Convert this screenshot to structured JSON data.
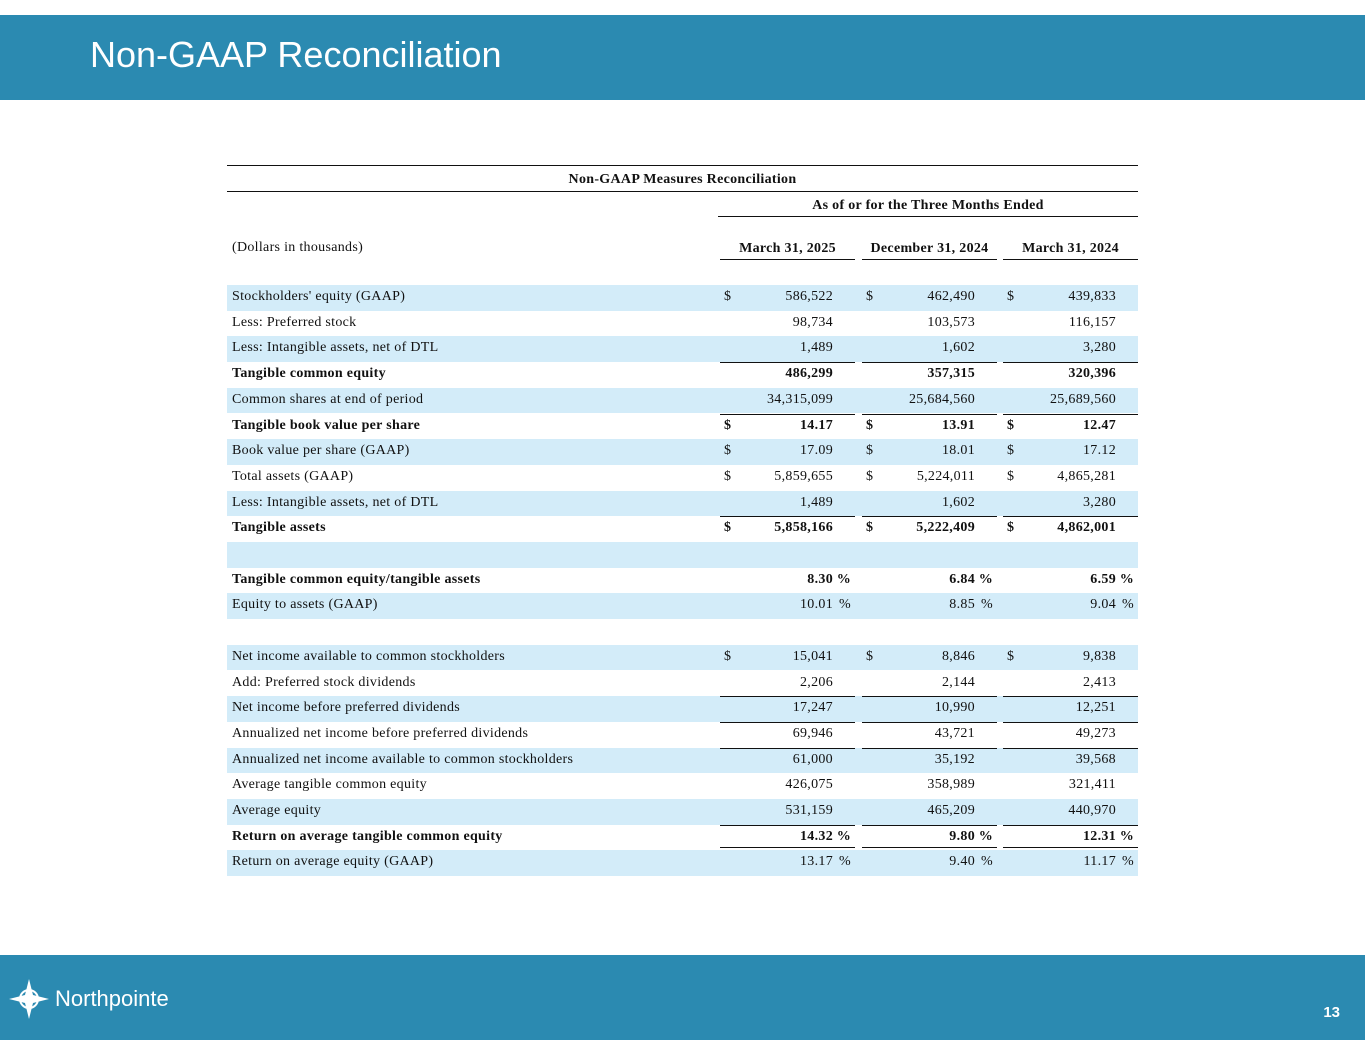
{
  "header": {
    "title": "Non-GAAP Reconciliation"
  },
  "table": {
    "title": "Non-GAAP Measures Reconciliation",
    "group_header": "As of or for the Three Months Ended",
    "unit_note": "(Dollars in thousands)",
    "columns": [
      "March 31, 2025",
      "December 31, 2024",
      "March 31, 2024"
    ],
    "sections": [
      {
        "rows": [
          {
            "label": "Stockholders' equity (GAAP)",
            "cells": [
              {
                "sign": "$",
                "value": "586,522"
              },
              {
                "sign": "$",
                "value": "462,490"
              },
              {
                "sign": "$",
                "value": "439,833"
              }
            ]
          },
          {
            "label": "Less: Preferred stock",
            "cells": [
              {
                "value": "98,734"
              },
              {
                "value": "103,573"
              },
              {
                "value": "116,157"
              }
            ]
          },
          {
            "label": "Less: Intangible assets, net of DTL",
            "cells": [
              {
                "value": "1,489"
              },
              {
                "value": "1,602"
              },
              {
                "value": "3,280"
              }
            ]
          },
          {
            "label": "Tangible common equity",
            "bold": true,
            "rule_above": true,
            "cells": [
              {
                "value": "486,299"
              },
              {
                "value": "357,315"
              },
              {
                "value": "320,396"
              }
            ]
          },
          {
            "label": "Common shares at end of period",
            "cells": [
              {
                "value": "34,315,099"
              },
              {
                "value": "25,684,560"
              },
              {
                "value": "25,689,560"
              }
            ]
          },
          {
            "label": "Tangible book value per share",
            "bold": true,
            "rule_above": true,
            "cells": [
              {
                "sign": "$",
                "value": "14.17"
              },
              {
                "sign": "$",
                "value": "13.91"
              },
              {
                "sign": "$",
                "value": "12.47"
              }
            ]
          },
          {
            "label": "Book value per share (GAAP)",
            "cells": [
              {
                "sign": "$",
                "value": "17.09"
              },
              {
                "sign": "$",
                "value": "18.01"
              },
              {
                "sign": "$",
                "value": "17.12"
              }
            ]
          },
          {
            "label": "Total assets (GAAP)",
            "cells": [
              {
                "sign": "$",
                "value": "5,859,655"
              },
              {
                "sign": "$",
                "value": "5,224,011"
              },
              {
                "sign": "$",
                "value": "4,865,281"
              }
            ]
          },
          {
            "label": "Less: Intangible assets, net of DTL",
            "cells": [
              {
                "value": "1,489"
              },
              {
                "value": "1,602"
              },
              {
                "value": "3,280"
              }
            ]
          },
          {
            "label": "Tangible assets",
            "bold": true,
            "rule_above": true,
            "cells": [
              {
                "sign": "$",
                "value": "5,858,166"
              },
              {
                "sign": "$",
                "value": "5,222,409"
              },
              {
                "sign": "$",
                "value": "4,862,001"
              }
            ]
          }
        ]
      },
      {
        "rows": [
          {
            "label": "Tangible common equity/tangible assets",
            "bold": true,
            "cells": [
              {
                "value": "8.30",
                "unit": "%"
              },
              {
                "value": "6.84",
                "unit": "%"
              },
              {
                "value": "6.59",
                "unit": "%"
              }
            ]
          },
          {
            "label": "Equity to assets (GAAP)",
            "cells": [
              {
                "value": "10.01",
                "unit": "%"
              },
              {
                "value": "8.85",
                "unit": "%"
              },
              {
                "value": "9.04",
                "unit": "%"
              }
            ]
          }
        ]
      },
      {
        "rows": [
          {
            "label": "Net income available to common stockholders",
            "cells": [
              {
                "sign": "$",
                "value": "15,041"
              },
              {
                "sign": "$",
                "value": "8,846"
              },
              {
                "sign": "$",
                "value": "9,838"
              }
            ]
          },
          {
            "label": "Add: Preferred stock dividends",
            "cells": [
              {
                "value": "2,206"
              },
              {
                "value": "2,144"
              },
              {
                "value": "2,413"
              }
            ]
          },
          {
            "label": "Net income before preferred dividends",
            "rule_above": true,
            "cells": [
              {
                "value": "17,247"
              },
              {
                "value": "10,990"
              },
              {
                "value": "12,251"
              }
            ]
          },
          {
            "label": "Annualized net income before preferred dividends",
            "rule_above": true,
            "cells": [
              {
                "value": "69,946"
              },
              {
                "value": "43,721"
              },
              {
                "value": "49,273"
              }
            ]
          },
          {
            "label": "Annualized net income available to common stockholders",
            "rule_above": true,
            "cells": [
              {
                "value": "61,000"
              },
              {
                "value": "35,192"
              },
              {
                "value": "39,568"
              }
            ]
          },
          {
            "label": "Average tangible common equity",
            "cells": [
              {
                "value": "426,075"
              },
              {
                "value": "358,989"
              },
              {
                "value": "321,411"
              }
            ]
          },
          {
            "label": "Average equity",
            "cells": [
              {
                "value": "531,159"
              },
              {
                "value": "465,209"
              },
              {
                "value": "440,970"
              }
            ]
          },
          {
            "label": "Return on average tangible common equity",
            "bold": true,
            "rule_above": true,
            "double_below": true,
            "cells": [
              {
                "value": "14.32",
                "unit": "%"
              },
              {
                "value": "9.80",
                "unit": "%"
              },
              {
                "value": "12.31",
                "unit": "%"
              }
            ]
          },
          {
            "label": "Return on average equity (GAAP)",
            "cells": [
              {
                "value": "13.17",
                "unit": "%"
              },
              {
                "value": "9.40",
                "unit": "%"
              },
              {
                "value": "11.17",
                "unit": "%"
              }
            ]
          }
        ]
      }
    ]
  },
  "footer": {
    "logo": "Northpointe",
    "page_number": "13"
  }
}
